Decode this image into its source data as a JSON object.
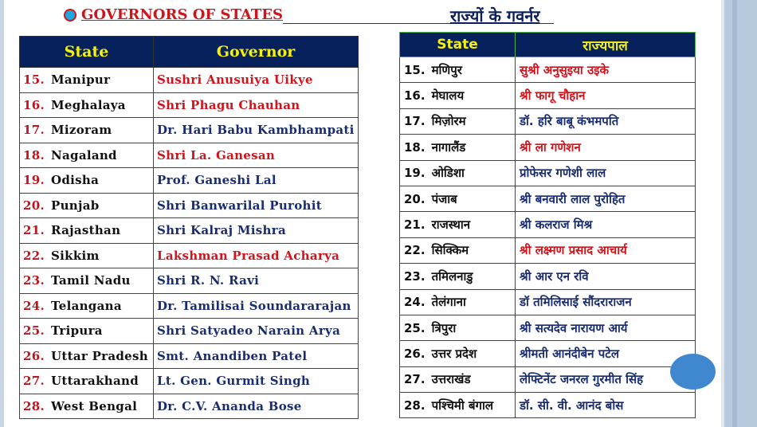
{
  "title_en": "GOVERNORS OF STATES",
  "title_hi": "राज्यों के गवर्नर",
  "colors": {
    "header_bg": "#05205a",
    "header_text": "#f5f012",
    "red": "#d0141c",
    "blue": "#1a2c70"
  },
  "left_table": {
    "headers": [
      "State",
      "Governor"
    ],
    "rows": [
      {
        "num": "15.",
        "state": "Manipur",
        "governor": "Sushri Anusuiya Uikye",
        "color": "red"
      },
      {
        "num": "16.",
        "state": "Meghalaya",
        "governor": "Shri Phagu Chauhan",
        "color": "red"
      },
      {
        "num": "17.",
        "state": "Mizoram",
        "governor": "Dr. Hari Babu Kambhampati",
        "color": "blue"
      },
      {
        "num": "18.",
        "state": "Nagaland",
        "governor": "Shri La. Ganesan",
        "color": "red"
      },
      {
        "num": "19.",
        "state": "Odisha",
        "governor": "Prof. Ganeshi Lal",
        "color": "blue"
      },
      {
        "num": "20.",
        "state": "Punjab",
        "governor": "Shri Banwarilal Purohit",
        "color": "blue"
      },
      {
        "num": "21.",
        "state": "Rajasthan",
        "governor": "Shri Kalraj Mishra",
        "color": "blue"
      },
      {
        "num": "22.",
        "state": "Sikkim",
        "governor": "Lakshman Prasad Acharya",
        "color": "red"
      },
      {
        "num": "23.",
        "state": "Tamil Nadu",
        "governor": "Shri R. N. Ravi",
        "color": "blue"
      },
      {
        "num": "24.",
        "state": "Telangana",
        "governor": "Dr. Tamilisai Soundararajan",
        "color": "blue"
      },
      {
        "num": "25.",
        "state": "Tripura",
        "governor": "Shri Satyadeo Narain Arya",
        "color": "blue"
      },
      {
        "num": "26.",
        "state": "Uttar Pradesh",
        "governor": "Smt. Anandiben Patel",
        "color": "blue"
      },
      {
        "num": "27.",
        "state": "Uttarakhand",
        "governor": "Lt. Gen. Gurmit Singh",
        "color": "blue"
      },
      {
        "num": "28.",
        "state": "West Bengal",
        "governor": "Dr. C.V. Ananda Bose",
        "color": "blue"
      }
    ]
  },
  "right_table": {
    "headers": [
      "State",
      "राज्यपाल"
    ],
    "rows": [
      {
        "num": "15.",
        "state": "मणिपुर",
        "governor": "सुश्री अनुसुइया उइके",
        "color": "red"
      },
      {
        "num": "16.",
        "state": "मेघालय",
        "governor": "श्री फागू चौहान",
        "color": "red"
      },
      {
        "num": "17.",
        "state": "मिज़ोरम",
        "governor": "डॉ. हरि बाबू कंभमपति",
        "color": "blue"
      },
      {
        "num": "18.",
        "state": "नागालैंड",
        "governor": "श्री ला गणेशन",
        "color": "red"
      },
      {
        "num": "19.",
        "state": "ओडिशा",
        "governor": "प्रोफेसर गणेशी लाल",
        "color": "blue"
      },
      {
        "num": "20.",
        "state": "पंजाब",
        "governor": "श्री बनवारी लाल पुरोहित",
        "color": "blue"
      },
      {
        "num": "21.",
        "state": "राजस्थान",
        "governor": "श्री कलराज मिश्र",
        "color": "blue"
      },
      {
        "num": "22.",
        "state": "सिक्किम",
        "governor": "श्री लक्ष्मण प्रसाद आचार्य",
        "color": "red"
      },
      {
        "num": "23.",
        "state": "तमिलनाडु",
        "governor": "श्री आर एन रवि",
        "color": "blue"
      },
      {
        "num": "24.",
        "state": "तेलंगाना",
        "governor": "डॉ तमिलिसाई सौंदराराजन",
        "color": "blue"
      },
      {
        "num": "25.",
        "state": "त्रिपुरा",
        "governor": "श्री सत्यदेव नारायण आर्य",
        "color": "blue"
      },
      {
        "num": "26.",
        "state": "उत्तर प्रदेश",
        "governor": "श्रीमती आनंदीबेन पटेल",
        "color": "blue"
      },
      {
        "num": "27.",
        "state": "उत्तराखंड",
        "governor": "लेफ्टिनेंट जनरल गुरमीत सिंह",
        "color": "blue"
      },
      {
        "num": "28.",
        "state": "पश्चिमी बंगाल",
        "governor": "डॉ. सी. वी. आनंद बोस",
        "color": "blue"
      }
    ]
  }
}
